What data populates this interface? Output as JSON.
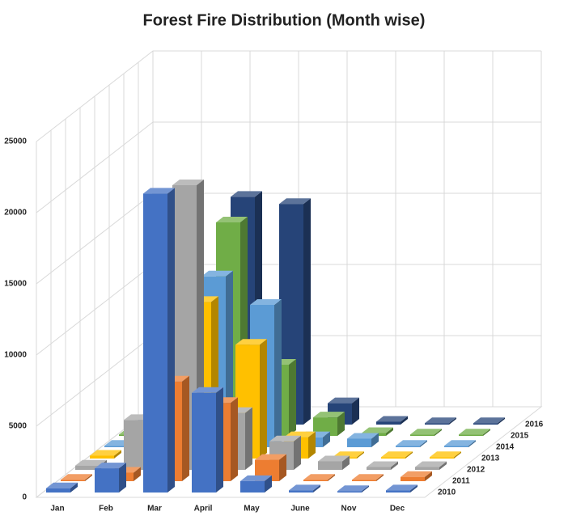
{
  "chart_data": {
    "type": "bar3d",
    "title": "Forest Fire Distribution (Month wise)",
    "categories": [
      "Jan",
      "Feb",
      "Mar",
      "April",
      "May",
      "June",
      "Nov",
      "Dec"
    ],
    "series": [
      {
        "name": "2010",
        "color": "#4472c4",
        "values": [
          300,
          1700,
          21000,
          7000,
          800,
          150,
          100,
          150
        ]
      },
      {
        "name": "2011",
        "color": "#ed7d31",
        "values": [
          100,
          600,
          7000,
          5500,
          1500,
          100,
          100,
          300
        ]
      },
      {
        "name": "2012",
        "color": "#a5a5a5",
        "values": [
          300,
          3500,
          20000,
          4000,
          2000,
          600,
          200,
          200
        ]
      },
      {
        "name": "2013",
        "color": "#ffc000",
        "values": [
          200,
          100,
          11000,
          8000,
          1500,
          100,
          100,
          100
        ]
      },
      {
        "name": "2014",
        "color": "#5b9bd5",
        "values": [
          100,
          100,
          12000,
          10000,
          700,
          600,
          100,
          100
        ]
      },
      {
        "name": "2015",
        "color": "#70ad47",
        "values": [
          100,
          100,
          15000,
          5000,
          1300,
          200,
          100,
          100
        ]
      },
      {
        "name": "2016",
        "color": "#264478",
        "values": [
          100,
          100,
          16000,
          15500,
          1500,
          200,
          100,
          100
        ]
      }
    ],
    "ylim": [
      0,
      25000
    ],
    "yticks": [
      0,
      5000,
      10000,
      15000,
      20000,
      25000
    ],
    "grid": true
  }
}
